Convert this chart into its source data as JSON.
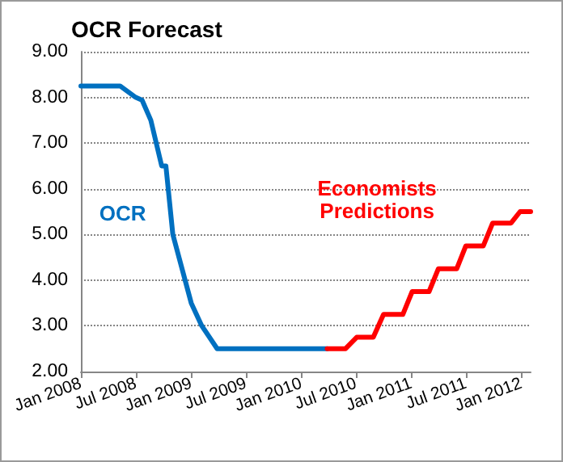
{
  "chart_data": {
    "type": "line",
    "title": "OCR Forecast",
    "series": [
      {
        "name": "OCR",
        "color": "#0070c0",
        "x": [
          "2008-01-01",
          "2008-05-10",
          "2008-07-01",
          "2008-07-22",
          "2008-08-20",
          "2008-09-25",
          "2008-10-09",
          "2008-11-01",
          "2009-01-01",
          "2009-02-05",
          "2009-03-28",
          "2010-03-28"
        ],
        "values": [
          8.25,
          8.25,
          8.0,
          7.94,
          7.5,
          6.5,
          6.5,
          5.0,
          3.5,
          3.0,
          2.5,
          2.5
        ]
      },
      {
        "name": "Economists Predictions",
        "color": "#ff0000",
        "x": [
          "2010-03-28",
          "2010-05-28",
          "2010-07-04",
          "2010-08-28",
          "2010-10-01",
          "2010-12-04",
          "2011-01-04",
          "2011-03-01",
          "2011-04-01",
          "2011-06-01",
          "2011-07-01",
          "2011-08-28",
          "2011-09-28",
          "2011-11-28",
          "2011-12-28",
          "2012-02-01"
        ],
        "values": [
          2.5,
          2.5,
          2.75,
          2.75,
          3.25,
          3.25,
          3.75,
          3.75,
          4.25,
          4.25,
          4.75,
          4.75,
          5.25,
          5.25,
          5.5,
          5.5
        ]
      }
    ],
    "xlim": [
      "2008-01-01",
      "2012-02-01"
    ],
    "xticks": [
      {
        "value": "2008-01-01",
        "label": "Jan 2008"
      },
      {
        "value": "2008-07-01",
        "label": "Jul 2008"
      },
      {
        "value": "2009-01-01",
        "label": "Jan 2009"
      },
      {
        "value": "2009-07-01",
        "label": "Jul 2009"
      },
      {
        "value": "2010-01-01",
        "label": "Jan 2010"
      },
      {
        "value": "2010-07-01",
        "label": "Jul 2010"
      },
      {
        "value": "2011-01-01",
        "label": "Jan 2011"
      },
      {
        "value": "2011-07-01",
        "label": "Jul 2011"
      },
      {
        "value": "2012-01-01",
        "label": "Jan 2012"
      }
    ],
    "ylim": [
      2,
      9
    ],
    "yticks": [
      {
        "value": 2,
        "label": "2.00"
      },
      {
        "value": 3,
        "label": "3.00"
      },
      {
        "value": 4,
        "label": "4.00"
      },
      {
        "value": 5,
        "label": "5.00"
      },
      {
        "value": 6,
        "label": "6.00"
      },
      {
        "value": 7,
        "label": "7.00"
      },
      {
        "value": 8,
        "label": "8.00"
      },
      {
        "value": 9,
        "label": "9.00"
      }
    ],
    "grid": "y",
    "legend": false,
    "marker": "none",
    "line_style": "solid"
  }
}
